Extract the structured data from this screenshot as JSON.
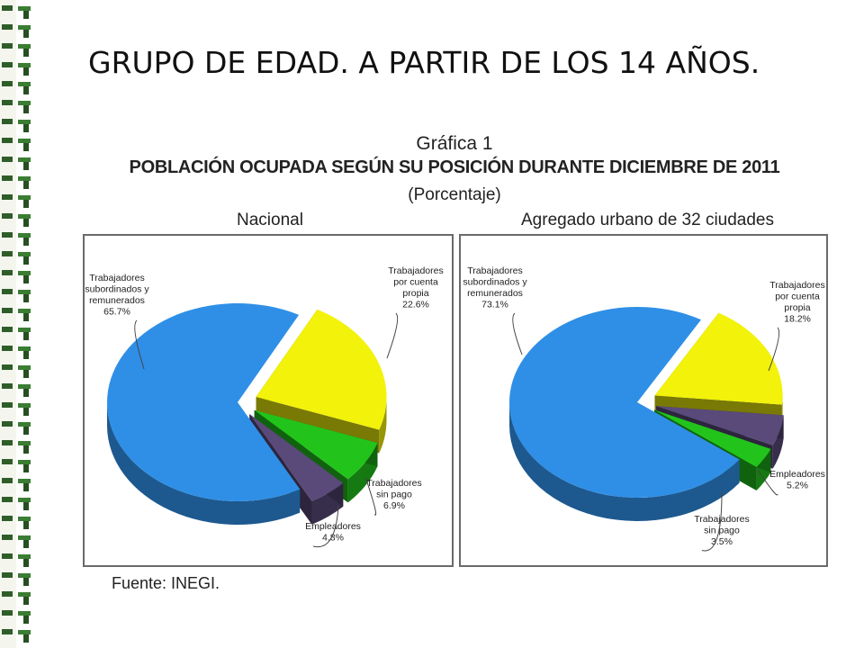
{
  "page": {
    "title": "GRUPO DE EDAD. A PARTIR DE LOS 14 AÑOS."
  },
  "figure": {
    "number": "Gráfica 1",
    "heading": "POBLACIÓN OCUPADA SEGÚN SU POSICIÓN DURANTE DICIEMBRE DE 2011",
    "subheading": "(Porcentaje)",
    "source": "Fuente: INEGI."
  },
  "chart_data": [
    {
      "type": "pie",
      "title": "Nacional",
      "slices": [
        {
          "label": "Trabajadores subordinados y remunerados",
          "value": 65.7,
          "value_label": "65.7%",
          "color": "#2f8fe6",
          "exploded": false
        },
        {
          "label": "Trabajadores por cuenta propia",
          "value": 22.6,
          "value_label": "22.6%",
          "color": "#f2f20a",
          "exploded": true
        },
        {
          "label": "Trabajadores sin pago",
          "value": 6.9,
          "value_label": "6.9%",
          "color": "#22c41c",
          "exploded": true
        },
        {
          "label": "Empleadores",
          "value": 4.8,
          "value_label": "4.8%",
          "color": "#594a7a",
          "exploded": true
        }
      ]
    },
    {
      "type": "pie",
      "title": "Agregado urbano de 32 ciudades",
      "slices": [
        {
          "label": "Trabajadores subordinados y remunerados",
          "value": 73.1,
          "value_label": "73.1%",
          "color": "#2f8fe6",
          "exploded": false
        },
        {
          "label": "Trabajadores por cuenta propia",
          "value": 18.2,
          "value_label": "18.2%",
          "color": "#f2f20a",
          "exploded": true
        },
        {
          "label": "Empleadores",
          "value": 5.2,
          "value_label": "5.2%",
          "color": "#594a7a",
          "exploded": true
        },
        {
          "label": "Trabajadores sin pago",
          "value": 3.5,
          "value_label": "3.5%",
          "color": "#22c41c",
          "exploded": true
        }
      ]
    }
  ]
}
